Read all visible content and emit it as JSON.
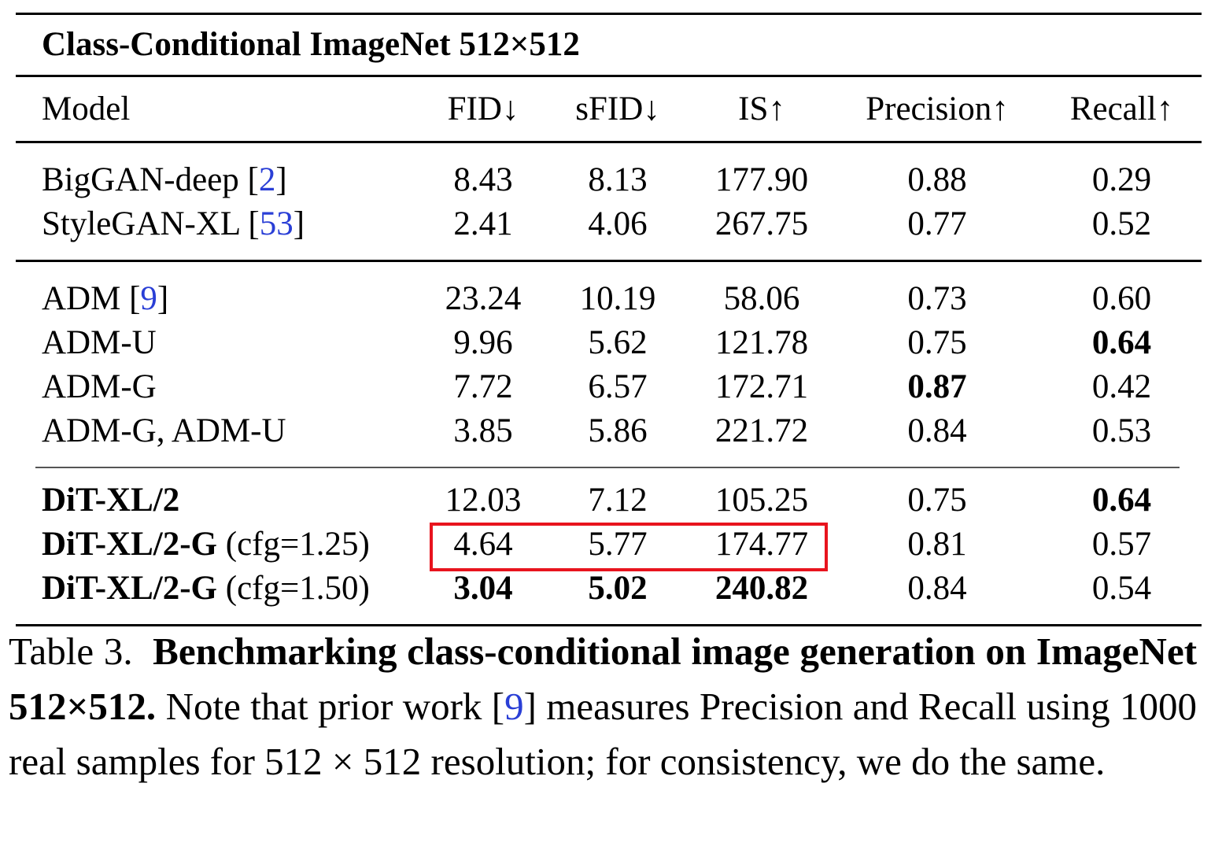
{
  "table": {
    "title": "Class-Conditional ImageNet 512×512",
    "columns": [
      "Model",
      "FID↓",
      "sFID↓",
      "IS↑",
      "Precision↑",
      "Recall↑"
    ],
    "groups": [
      {
        "rows": [
          {
            "model": "BigGAN-deep",
            "cite": "2",
            "suffix": "",
            "model_bold": false,
            "values": [
              "8.43",
              "8.13",
              "177.90",
              "0.88",
              "0.29"
            ],
            "bold": [
              false,
              false,
              false,
              false,
              false
            ]
          },
          {
            "model": "StyleGAN-XL",
            "cite": "53",
            "suffix": "",
            "model_bold": false,
            "values": [
              "2.41",
              "4.06",
              "267.75",
              "0.77",
              "0.52"
            ],
            "bold": [
              false,
              false,
              false,
              false,
              false
            ]
          }
        ]
      },
      {
        "rows": [
          {
            "model": "ADM",
            "cite": "9",
            "suffix": "",
            "model_bold": false,
            "values": [
              "23.24",
              "10.19",
              "58.06",
              "0.73",
              "0.60"
            ],
            "bold": [
              false,
              false,
              false,
              false,
              false
            ]
          },
          {
            "model": "ADM-U",
            "cite": "",
            "suffix": "",
            "model_bold": false,
            "values": [
              "9.96",
              "5.62",
              "121.78",
              "0.75",
              "0.64"
            ],
            "bold": [
              false,
              false,
              false,
              false,
              true
            ]
          },
          {
            "model": "ADM-G",
            "cite": "",
            "suffix": "",
            "model_bold": false,
            "values": [
              "7.72",
              "6.57",
              "172.71",
              "0.87",
              "0.42"
            ],
            "bold": [
              false,
              false,
              false,
              true,
              false
            ]
          },
          {
            "model": "ADM-G, ADM-U",
            "cite": "",
            "suffix": "",
            "model_bold": false,
            "values": [
              "3.85",
              "5.86",
              "221.72",
              "0.84",
              "0.53"
            ],
            "bold": [
              false,
              false,
              false,
              false,
              false
            ]
          }
        ]
      },
      {
        "rows": [
          {
            "model": "DiT-XL/2",
            "cite": "",
            "suffix": "",
            "model_bold": true,
            "values": [
              "12.03",
              "7.12",
              "105.25",
              "0.75",
              "0.64"
            ],
            "bold": [
              false,
              false,
              false,
              false,
              true
            ]
          },
          {
            "model": "DiT-XL/2-G",
            "cite": "",
            "suffix": "(cfg=1.25)",
            "model_bold": true,
            "values": [
              "4.64",
              "5.77",
              "174.77",
              "0.81",
              "0.57"
            ],
            "bold": [
              false,
              false,
              false,
              false,
              false
            ]
          },
          {
            "model": "DiT-XL/2-G",
            "cite": "",
            "suffix": "(cfg=1.50)",
            "model_bold": true,
            "values": [
              "3.04",
              "5.02",
              "240.82",
              "0.84",
              "0.54"
            ],
            "bold": [
              true,
              true,
              true,
              false,
              false
            ]
          }
        ]
      }
    ],
    "highlight_color": "#e8141e",
    "citation_color": "#2a3fd6"
  },
  "caption": {
    "label": "Table 3.",
    "bold_text": "Benchmarking class-conditional image generation on ImageNet 512×512.",
    "text_before_cite": "Note that prior work [",
    "cite": "9",
    "text_after_cite": "] measures Precision and Recall using 1000 real samples for 512 × 512 resolution; for consistency, we do the same."
  }
}
